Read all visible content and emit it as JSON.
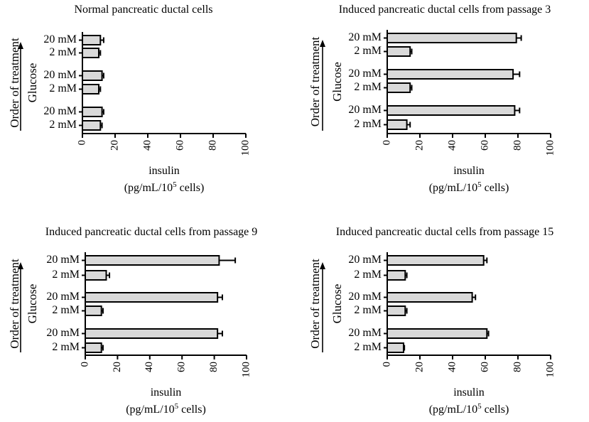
{
  "chart_data": [
    {
      "type": "bar",
      "orientation": "horizontal",
      "title": "Normal pancreatic ductal cells",
      "categories": [
        "20 mM",
        "2 mM",
        "20 mM",
        "2 mM",
        "20 mM",
        "2 mM"
      ],
      "values": [
        11,
        10,
        12,
        10,
        12,
        11
      ],
      "errors": [
        2,
        1,
        1,
        1,
        1,
        1
      ],
      "xlabel": "insulin",
      "xunit_prefix": "(pg/mL/10",
      "xunit_sup": "5",
      "xunit_suffix": " cells)",
      "ylabel_outer": "Order of treatment",
      "ylabel_inner": "Glucose",
      "xlim": [
        0,
        100
      ],
      "xticks": [
        "0",
        "20",
        "40",
        "60",
        "80",
        "100"
      ],
      "bar_color": "#d9d9d9"
    },
    {
      "type": "bar",
      "orientation": "horizontal",
      "title": "Induced pancreatic ductal cells from passage 3",
      "categories": [
        "20 mM",
        "2 mM",
        "20 mM",
        "2 mM",
        "20 mM",
        "2 mM"
      ],
      "values": [
        79,
        14,
        77,
        14,
        78,
        12
      ],
      "errors": [
        3,
        1,
        4,
        1,
        3,
        2
      ],
      "xlabel": "insulin",
      "xunit_prefix": "(pg/mL/10",
      "xunit_sup": "5",
      "xunit_suffix": " cells)",
      "ylabel_outer": "Order of treatment",
      "ylabel_inner": "Glucose",
      "xlim": [
        0,
        100
      ],
      "xticks": [
        "0",
        "20",
        "40",
        "60",
        "80",
        "100"
      ],
      "bar_color": "#d9d9d9"
    },
    {
      "type": "bar",
      "orientation": "horizontal",
      "title": "Induced pancreatic ductal cells from passage 9",
      "categories": [
        "20 mM",
        "2 mM",
        "20 mM",
        "2 mM",
        "20 mM",
        "2 mM"
      ],
      "values": [
        83,
        13,
        82,
        10,
        82,
        10
      ],
      "errors": [
        10,
        2,
        3,
        1,
        3,
        1
      ],
      "xlabel": "insulin",
      "xunit_prefix": "(pg/mL/10",
      "xunit_sup": "5",
      "xunit_suffix": " cells)",
      "ylabel_outer": "Order of treatment",
      "ylabel_inner": "Glucose",
      "xlim": [
        0,
        100
      ],
      "xticks": [
        "0",
        "20",
        "40",
        "60",
        "80",
        "100"
      ],
      "bar_color": "#d9d9d9"
    },
    {
      "type": "bar",
      "orientation": "horizontal",
      "title": "Induced pancreatic ductal cells from passage 15",
      "categories": [
        "20 mM",
        "2 mM",
        "20 mM",
        "2 mM",
        "20 mM",
        "2 mM"
      ],
      "values": [
        59,
        11,
        52,
        11,
        61,
        10
      ],
      "errors": [
        2,
        1,
        2,
        1,
        1,
        0.5
      ],
      "xlabel": "insulin",
      "xunit_prefix": "(pg/mL/10",
      "xunit_sup": "5",
      "xunit_suffix": " cells)",
      "ylabel_outer": "Order of treatment",
      "ylabel_inner": "Glucose",
      "xlim": [
        0,
        100
      ],
      "xticks": [
        "0",
        "20",
        "40",
        "60",
        "80",
        "100"
      ],
      "bar_color": "#d9d9d9"
    }
  ]
}
